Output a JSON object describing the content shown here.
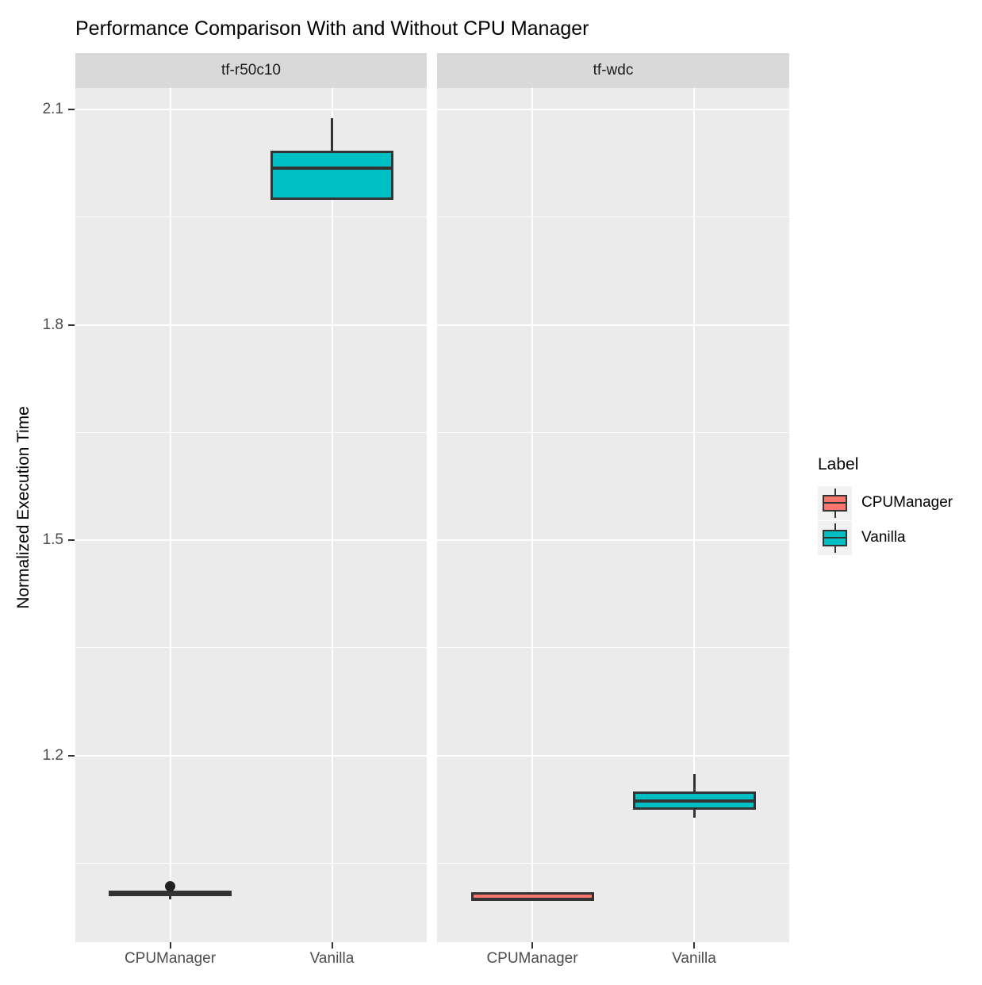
{
  "chart_data": {
    "type": "boxplot",
    "title": "Performance Comparison With and Without CPU Manager",
    "ylabel": "Normalized Execution Time",
    "xlabel": "",
    "ylim": [
      0.94,
      2.13
    ],
    "yticks": [
      "1.2",
      "1.5",
      "1.8",
      "2.1"
    ],
    "ytick_values": [
      1.2,
      1.5,
      1.8,
      2.1
    ],
    "yminor_gridlines": [
      1.05,
      1.35,
      1.65,
      1.95
    ],
    "grid": true,
    "legend_position": "right",
    "categories": [
      "CPUManager",
      "Vanilla"
    ],
    "facets": [
      {
        "label": "tf-r50c10",
        "boxes": [
          {
            "category": "CPUManager",
            "color": "#F8766D",
            "min": 1.0,
            "q1": 1.004,
            "median": 1.008,
            "q3": 1.012,
            "max": 1.012,
            "outliers": [
              1.018
            ]
          },
          {
            "category": "Vanilla",
            "color": "#00BFC4",
            "min": 1.974,
            "q1": 1.974,
            "median": 2.018,
            "q3": 2.043,
            "max": 2.088,
            "outliers": []
          }
        ]
      },
      {
        "label": "tf-wdc",
        "boxes": [
          {
            "category": "CPUManager",
            "color": "#F8766D",
            "min": 0.998,
            "q1": 0.998,
            "median": 1.0,
            "q3": 1.01,
            "max": 1.01,
            "outliers": []
          },
          {
            "category": "Vanilla",
            "color": "#00BFC4",
            "min": 1.114,
            "q1": 1.124,
            "median": 1.137,
            "q3": 1.15,
            "max": 1.174,
            "outliers": []
          }
        ]
      }
    ],
    "legend": {
      "title": "Label",
      "items": [
        {
          "label": "CPUManager",
          "color": "#F8766D"
        },
        {
          "label": "Vanilla",
          "color": "#00BFC4"
        }
      ]
    },
    "style": {
      "panel_bg": "#EBEBEB",
      "strip_bg": "#D9D9D9",
      "grid_color": "#FFFFFF",
      "box_border": "#333333",
      "tick_color": "#333333",
      "tick_label_color": "#4D4D4D",
      "outlier_color": "#222222"
    }
  }
}
